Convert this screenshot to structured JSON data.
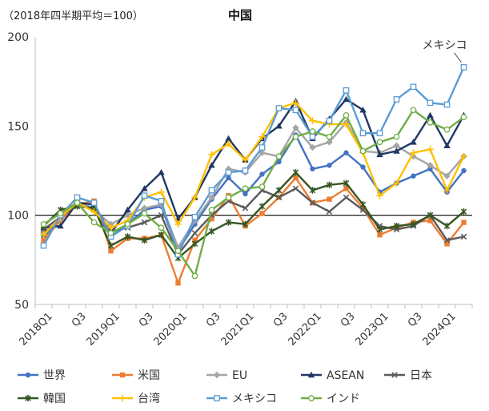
{
  "chart_data": {
    "type": "line",
    "note": "（2018年四半期平均＝100）",
    "title": "中国",
    "annotation": "メキシコ",
    "ylim": [
      50,
      200
    ],
    "yticks": [
      50,
      100,
      150,
      200
    ],
    "grid": false,
    "reference_line": 100,
    "legend_position": "bottom",
    "x": [
      "2018Q1",
      "2018Q2",
      "2018Q3",
      "2018Q4",
      "2019Q1",
      "2019Q2",
      "2019Q3",
      "2019Q4",
      "2020Q1",
      "2020Q2",
      "2020Q3",
      "2020Q4",
      "2021Q1",
      "2021Q2",
      "2021Q3",
      "2021Q4",
      "2022Q1",
      "2022Q2",
      "2022Q3",
      "2022Q4",
      "2023Q1",
      "2023Q2",
      "2023Q3",
      "2023Q4",
      "2024Q1",
      "2024Q2"
    ],
    "xtick_labels": [
      "2018Q1",
      "",
      "Q3",
      "",
      "2019Q1",
      "",
      "Q3",
      "",
      "2020Q1",
      "",
      "Q3",
      "",
      "2021Q1",
      "",
      "Q3",
      "",
      "2022Q1",
      "",
      "Q3",
      "",
      "2023Q1",
      "",
      "Q3",
      "",
      "2024Q1",
      ""
    ],
    "series": [
      {
        "name": "世界",
        "color": "#4472C4",
        "marker": "circle",
        "values": [
          88,
          97,
          107,
          104,
          88,
          95,
          103,
          105,
          80,
          95,
          109,
          121,
          112,
          123,
          130,
          145,
          126,
          128,
          135,
          127,
          113,
          118,
          122,
          126,
          113,
          125
        ]
      },
      {
        "name": "米国",
        "color": "#ED7D31",
        "marker": "square",
        "values": [
          86,
          97,
          106,
          108,
          80,
          87,
          87,
          89,
          62,
          86,
          98,
          111,
          94,
          101,
          110,
          121,
          107,
          109,
          115,
          104,
          89,
          93,
          96,
          97,
          84,
          96
        ]
      },
      {
        "name": "EU",
        "color": "#A5A5A5",
        "marker": "diamond",
        "values": [
          90,
          98,
          108,
          103,
          95,
          100,
          104,
          106,
          82,
          97,
          110,
          126,
          124,
          135,
          133,
          149,
          138,
          141,
          152,
          136,
          135,
          139,
          133,
          128,
          122,
          133
        ]
      },
      {
        "name": "ASEAN",
        "color": "#203864",
        "marker": "triangle",
        "values": [
          93,
          94,
          107,
          106,
          90,
          103,
          115,
          124,
          98,
          110,
          128,
          143,
          131,
          143,
          150,
          164,
          143,
          154,
          165,
          159,
          134,
          136,
          141,
          156,
          139,
          156
        ]
      },
      {
        "name": "日本",
        "color": "#5A5A5A",
        "marker": "x",
        "values": [
          92,
          99,
          106,
          103,
          91,
          93,
          96,
          100,
          78,
          90,
          100,
          108,
          104,
          114,
          110,
          115,
          107,
          102,
          110,
          103,
          94,
          92,
          94,
          100,
          86,
          88
        ]
      },
      {
        "name": "韓国",
        "color": "#375623",
        "marker": "star",
        "values": [
          94,
          103,
          105,
          104,
          83,
          88,
          86,
          89,
          76,
          84,
          91,
          96,
          95,
          105,
          114,
          124,
          114,
          117,
          118,
          106,
          92,
          94,
          95,
          100,
          94,
          102
        ]
      },
      {
        "name": "台湾",
        "color": "#FFC000",
        "marker": "plus",
        "values": [
          89,
          99,
          107,
          102,
          93,
          97,
          110,
          113,
          95,
          110,
          134,
          140,
          131,
          144,
          160,
          163,
          153,
          151,
          151,
          135,
          111,
          118,
          135,
          137,
          114,
          133
        ]
      },
      {
        "name": "メキシコ",
        "color": "#5B9BD5",
        "marker": "square-open",
        "values": [
          83,
          100,
          110,
          107,
          88,
          94,
          111,
          108,
          78,
          99,
          114,
          124,
          125,
          138,
          160,
          159,
          144,
          153,
          170,
          146,
          146,
          165,
          172,
          163,
          162,
          183
        ]
      },
      {
        "name": "インド",
        "color": "#70AD47",
        "marker": "circle-open",
        "values": [
          95,
          101,
          107,
          96,
          90,
          95,
          101,
          93,
          80,
          66,
          103,
          110,
          115,
          116,
          133,
          144,
          147,
          144,
          156,
          136,
          141,
          144,
          159,
          152,
          148,
          155
        ]
      }
    ]
  }
}
